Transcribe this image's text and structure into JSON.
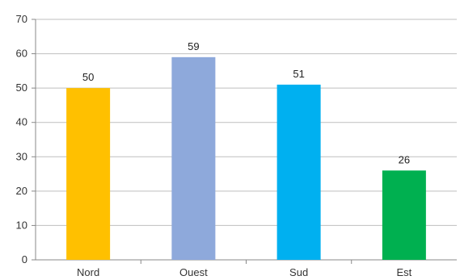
{
  "chart_data": {
    "type": "bar",
    "categories": [
      "Nord",
      "Ouest",
      "Sud",
      "Est"
    ],
    "values": [
      50,
      59,
      51,
      26
    ],
    "value_labels": [
      "50",
      "59",
      "51",
      "26"
    ],
    "bar_colors": [
      "#FFC000",
      "#8EA9DB",
      "#00B0F0",
      "#00B050"
    ],
    "ylim": [
      0,
      70
    ],
    "yticks": [
      0,
      10,
      20,
      30,
      40,
      50,
      60,
      70
    ],
    "ytick_labels": [
      "0",
      "10",
      "20",
      "30",
      "40",
      "50",
      "60",
      "70"
    ],
    "grid": true,
    "legend": false,
    "title": "",
    "xlabel": "",
    "ylabel": ""
  }
}
